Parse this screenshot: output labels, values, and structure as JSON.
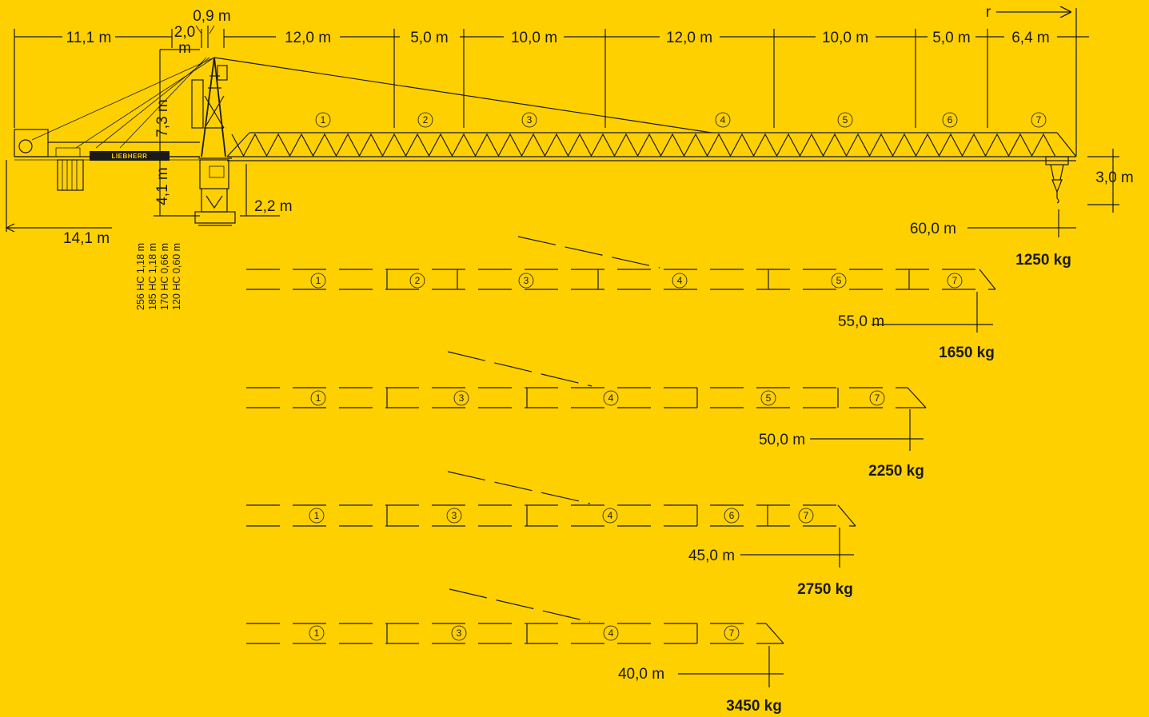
{
  "colors": {
    "background": "#ffd000",
    "ink": "#1a1a1a"
  },
  "top_dimensions": {
    "counter_jib": "11,1 m",
    "tip_offset": "0,9 m",
    "head_width_a": "2,0",
    "head_width_b": "m",
    "segments": [
      "12,0 m",
      "5,0 m",
      "10,0 m",
      "12,0 m",
      "10,0 m",
      "5,0 m",
      "6,4 m"
    ],
    "radius_label": "r"
  },
  "side_dimensions": {
    "tower_head_height": "7,3 m",
    "slewing_height": "4,1 m",
    "base_height": "2,2 m",
    "counter_jib_radius": "14,1 m",
    "trolley_height": "3,0 m"
  },
  "brand": "LIEBHERR",
  "tower_types": [
    "256 HC 1,18 m",
    "185 HC 1,18 m",
    "170 HC 0,66 m",
    "120 HC 0,60 m"
  ],
  "section_markers": {
    "main": [
      "1",
      "2",
      "3",
      "4",
      "5",
      "6",
      "7"
    ],
    "config_55": [
      "1",
      "2",
      "3",
      "4",
      "5",
      "7"
    ],
    "config_50": [
      "1",
      "3",
      "4",
      "5",
      "7"
    ],
    "config_45": [
      "1",
      "3",
      "4",
      "6",
      "7"
    ],
    "config_40": [
      "1",
      "3",
      "4",
      "7"
    ]
  },
  "jib_configurations": [
    {
      "length": "60,0 m",
      "tip_load": "1250 kg"
    },
    {
      "length": "55,0 m",
      "tip_load": "1650 kg"
    },
    {
      "length": "50,0 m",
      "tip_load": "2250 kg"
    },
    {
      "length": "45,0 m",
      "tip_load": "2750 kg"
    },
    {
      "length": "40,0 m",
      "tip_load": "3450 kg"
    }
  ]
}
